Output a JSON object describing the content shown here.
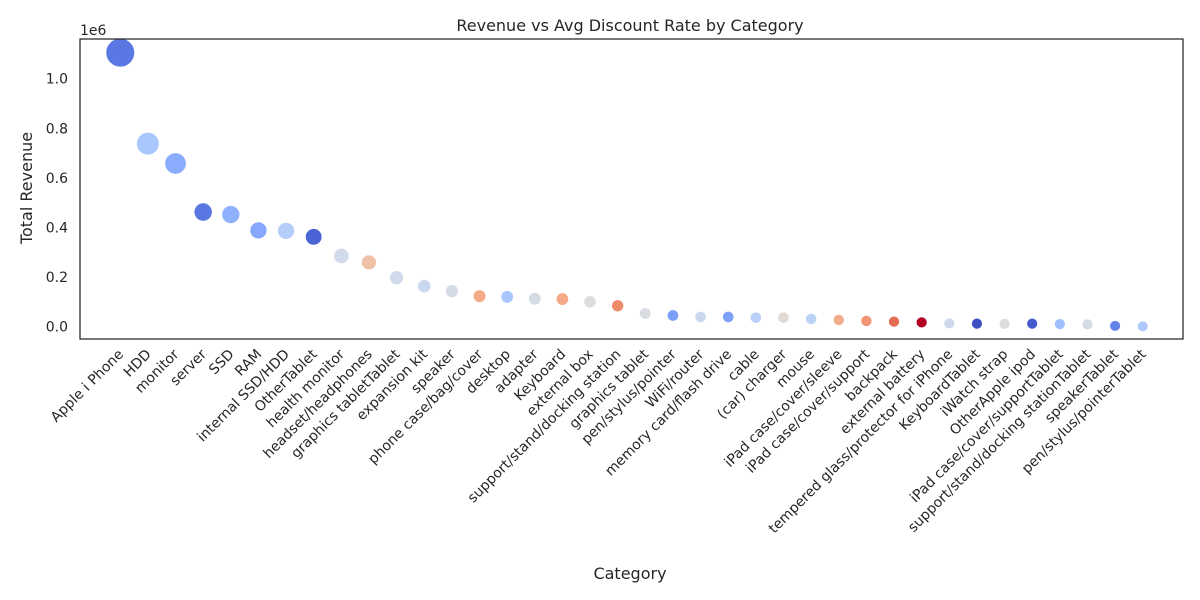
{
  "chart_data": {
    "type": "scatter",
    "title": "Revenue vs Avg Discount Rate by Category",
    "xlabel": "Category",
    "ylabel": "Total Revenue",
    "y_offset_label": "1e6",
    "ylim": [
      -0.05,
      1.16
    ],
    "yticks": [
      "0.0",
      "0.2",
      "0.4",
      "0.6",
      "0.8",
      "1.0"
    ],
    "grid": false,
    "legend": "none",
    "categories": [
      "Apple i Phone",
      "HDD",
      "monitor",
      "server",
      "SSD",
      "RAM",
      "internal SSD/HDD",
      "OtherTablet",
      "health monitor",
      "headset/headphones",
      "graphics tabletTablet",
      "expansion kit",
      "speaker",
      "phone case/bag/cover",
      "desktop",
      "adapter",
      "Keyboard",
      "external box",
      "support/stand/docking station",
      "graphics tablet",
      "pen/stylus/pointer",
      "WiFi/router",
      "memory card/flash drive",
      "cable",
      "(car) charger",
      "mouse",
      "iPad case/cover/sleeve",
      "iPad case/cover/support",
      "backpack",
      "external battery",
      "tempered glass/protector for iPhone",
      "KeyboardTablet",
      "iWatch strap",
      "OtherApple ipod",
      "iPad case/cover/supportTablet",
      "support/stand/docking stationTablet",
      "speakerTablet",
      "pen/stylus/pointerTablet"
    ],
    "values": [
      1.105,
      0.738,
      0.658,
      0.462,
      0.452,
      0.388,
      0.386,
      0.362,
      0.285,
      0.259,
      0.197,
      0.163,
      0.143,
      0.123,
      0.12,
      0.112,
      0.111,
      0.1,
      0.084,
      0.053,
      0.045,
      0.039,
      0.039,
      0.036,
      0.036,
      0.031,
      0.027,
      0.023,
      0.02,
      0.017,
      0.013,
      0.012,
      0.011,
      0.012,
      0.01,
      0.009,
      0.003,
      0.001
    ],
    "colors": [
      "#5a78e4",
      "#aac7fd",
      "#89acfd",
      "#5977e3",
      "#8fb1fe",
      "#85a8fc",
      "#b4cdfa",
      "#4b64d5",
      "#d1dae9",
      "#efc1a7",
      "#cfdaea",
      "#cad8ef",
      "#d5dbe5",
      "#f4aa87",
      "#a9c6fd",
      "#d5dbe5",
      "#f4aa87",
      "#dcdddd",
      "#ef8a68",
      "#d9dce1",
      "#7b9ff9",
      "#cad8ef",
      "#7da0f9",
      "#b9d0f9",
      "#e2d9d4",
      "#bcd2f7",
      "#f1ad8c",
      "#f29373",
      "#e36c55",
      "#b40426",
      "#cedaeb",
      "#3c4ec2",
      "#dcdddd",
      "#445acc",
      "#9ebeff",
      "#d5dbe5",
      "#6282ea",
      "#aec9fc"
    ]
  }
}
